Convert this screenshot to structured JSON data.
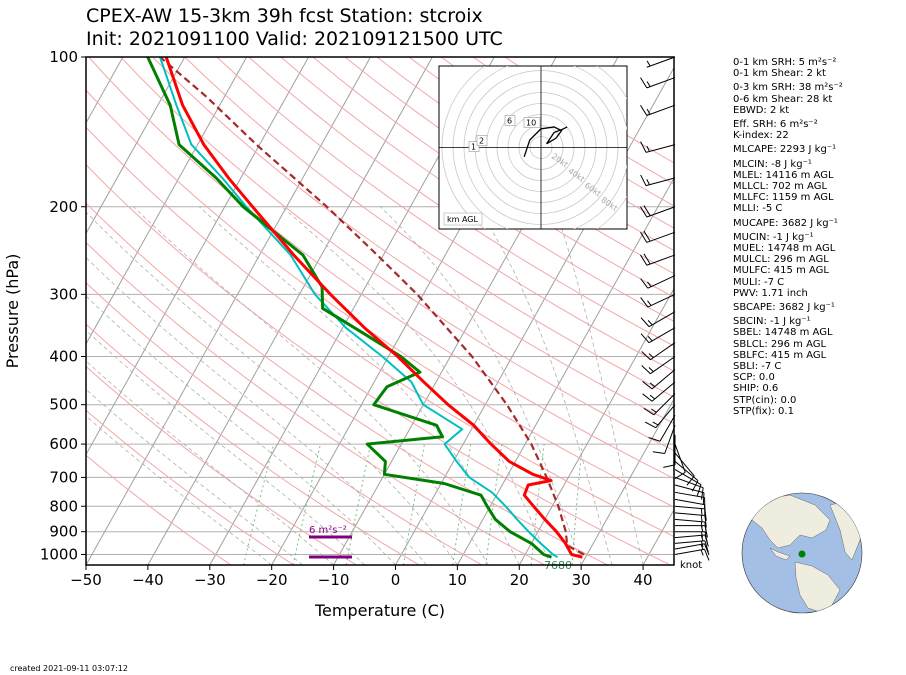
{
  "title_line1": "CPEX-AW 15-3km  39h fcst  Station: stcroix",
  "title_line2": "Init: 2021091100  Valid: 202109121500 UTC",
  "created": "created 2021-09-11 03:07:12",
  "wind_unit_label": "knot",
  "surface_label": "7680",
  "srh_label": "6 m²s⁻²",
  "hodograph": {
    "corner_label": "km AGL",
    "ring_labels": [
      "20kt",
      "40kt",
      "60kt",
      "80kt"
    ],
    "height_labels": [
      "1",
      "2",
      "6",
      "10"
    ]
  },
  "stats": [
    "0-1 km SRH: 5 m²s⁻²",
    "0-1 km Shear: 2 kt",
    "0-3 km SRH: 38 m²s⁻²",
    "0-6 km Shear: 28 kt",
    "EBWD: 2 kt",
    "Eff. SRH: 6 m²s⁻²",
    "K-index: 22",
    "MLCAPE: 2293 J kg⁻¹",
    "MLCIN: -8 J kg⁻¹",
    "MLEL: 14116 m AGL",
    "MLLCL: 702 m AGL",
    "MLLFC: 1159 m AGL",
    "MLLI: -5 C",
    "MUCAPE: 3682 J kg⁻¹",
    "MUCIN: -1 J kg⁻¹",
    "MUEL: 14748 m AGL",
    "MULCL: 296 m AGL",
    "MULFC: 415 m AGL",
    "MULI: -7 C",
    "PWV: 1.71 inch",
    "SBCAPE: 3682 J kg⁻¹",
    "SBCIN: -1 J kg⁻¹",
    "SBEL: 14748 m AGL",
    "SBLCL: 296 m AGL",
    "SBLFC: 415 m AGL",
    "SBLI: -7 C",
    "SCP: 0.0",
    "SHIP: 0.6",
    "STP(cin): 0.0",
    "STP(fix): 0.1"
  ],
  "colors": {
    "temperature": "#ff0000",
    "dewpoint": "#008000",
    "wetbulb": "#00bfbf",
    "parcel": "#a52a2a",
    "srh_bar": "#800080",
    "isotherm": "#a0a0a0",
    "dry_adiabat": "#f4a6a6",
    "moist_adiabat": "#b0b0b0",
    "mixing_ratio": "#7cbf7c",
    "globe_ocean": "#a3bfe6",
    "globe_land": "#efeddf"
  },
  "chart_data": {
    "type": "skew-t",
    "xlabel": "Temperature (C)",
    "ylabel": "Pressure (hPa)",
    "xlim": [
      -50,
      45
    ],
    "ylim": [
      1050,
      100
    ],
    "x_ticks": [
      -50,
      -40,
      -30,
      -20,
      -10,
      0,
      10,
      20,
      30,
      40
    ],
    "x_tick_labels": [
      "−50",
      "−40",
      "−30",
      "−20",
      "−10",
      "0",
      "10",
      "20",
      "30",
      "40"
    ],
    "y_ticks": [
      1000,
      900,
      800,
      700,
      600,
      500,
      400,
      300,
      200,
      100
    ],
    "y_tick_labels": [
      "1000",
      "900",
      "800",
      "700",
      "600",
      "500",
      "400",
      "300",
      "200",
      "100"
    ],
    "temperature": [
      {
        "p": 1013,
        "t": 29.5
      },
      {
        "p": 1000,
        "t": 27.5
      },
      {
        "p": 950,
        "t": 25.5
      },
      {
        "p": 900,
        "t": 23.0
      },
      {
        "p": 850,
        "t": 20.0
      },
      {
        "p": 800,
        "t": 17.0
      },
      {
        "p": 760,
        "t": 14.5
      },
      {
        "p": 725,
        "t": 14.2
      },
      {
        "p": 710,
        "t": 17.5
      },
      {
        "p": 690,
        "t": 14.0
      },
      {
        "p": 650,
        "t": 9.0
      },
      {
        "p": 600,
        "t": 4.5
      },
      {
        "p": 550,
        "t": 0.0
      },
      {
        "p": 500,
        "t": -6.0
      },
      {
        "p": 450,
        "t": -12.0
      },
      {
        "p": 400,
        "t": -18.5
      },
      {
        "p": 350,
        "t": -26.5
      },
      {
        "p": 300,
        "t": -35.0
      },
      {
        "p": 250,
        "t": -44.5
      },
      {
        "p": 200,
        "t": -55.5
      },
      {
        "p": 175,
        "t": -62.0
      },
      {
        "p": 150,
        "t": -69.0
      },
      {
        "p": 125,
        "t": -76.0
      },
      {
        "p": 100,
        "t": -83.0
      }
    ],
    "dewpoint": [
      {
        "p": 1013,
        "t": 24.5
      },
      {
        "p": 1000,
        "t": 23.0
      },
      {
        "p": 950,
        "t": 20.0
      },
      {
        "p": 900,
        "t": 15.5
      },
      {
        "p": 850,
        "t": 12.0
      },
      {
        "p": 800,
        "t": 9.5
      },
      {
        "p": 760,
        "t": 7.5
      },
      {
        "p": 720,
        "t": 0.5
      },
      {
        "p": 690,
        "t": -10.0
      },
      {
        "p": 650,
        "t": -11.0
      },
      {
        "p": 600,
        "t": -15.5
      },
      {
        "p": 580,
        "t": -4.0
      },
      {
        "p": 550,
        "t": -6.0
      },
      {
        "p": 500,
        "t": -18.0
      },
      {
        "p": 460,
        "t": -17.5
      },
      {
        "p": 430,
        "t": -13.5
      },
      {
        "p": 400,
        "t": -18.0
      },
      {
        "p": 360,
        "t": -26.0
      },
      {
        "p": 320,
        "t": -35.0
      },
      {
        "p": 290,
        "t": -37.0
      },
      {
        "p": 250,
        "t": -43.0
      },
      {
        "p": 200,
        "t": -57.0
      },
      {
        "p": 175,
        "t": -64.0
      },
      {
        "p": 150,
        "t": -73.0
      },
      {
        "p": 125,
        "t": -78.0
      },
      {
        "p": 100,
        "t": -86.0
      }
    ],
    "wetbulb": [
      {
        "p": 1013,
        "t": 25.5
      },
      {
        "p": 1000,
        "t": 24.5
      },
      {
        "p": 950,
        "t": 21.5
      },
      {
        "p": 900,
        "t": 18.5
      },
      {
        "p": 850,
        "t": 15.5
      },
      {
        "p": 800,
        "t": 12.5
      },
      {
        "p": 750,
        "t": 9.0
      },
      {
        "p": 700,
        "t": 4.0
      },
      {
        "p": 650,
        "t": 0.5
      },
      {
        "p": 600,
        "t": -3.0
      },
      {
        "p": 560,
        "t": -1.5
      },
      {
        "p": 500,
        "t": -10.0
      },
      {
        "p": 450,
        "t": -14.0
      },
      {
        "p": 400,
        "t": -21.0
      },
      {
        "p": 350,
        "t": -29.5
      },
      {
        "p": 300,
        "t": -37.5
      },
      {
        "p": 250,
        "t": -45.0
      },
      {
        "p": 200,
        "t": -56.5
      },
      {
        "p": 175,
        "t": -63.0
      },
      {
        "p": 150,
        "t": -71.0
      },
      {
        "p": 125,
        "t": -77.0
      },
      {
        "p": 100,
        "t": -84.0
      }
    ],
    "parcel": [
      {
        "p": 1000,
        "t": 29.5
      },
      {
        "p": 960,
        "t": 26.0
      },
      {
        "p": 900,
        "t": 24.5
      },
      {
        "p": 800,
        "t": 21.0
      },
      {
        "p": 700,
        "t": 16.5
      },
      {
        "p": 600,
        "t": 11.0
      },
      {
        "p": 500,
        "t": 3.5
      },
      {
        "p": 400,
        "t": -6.5
      },
      {
        "p": 300,
        "t": -21.0
      },
      {
        "p": 250,
        "t": -31.0
      },
      {
        "p": 200,
        "t": -43.5
      },
      {
        "p": 150,
        "t": -60.5
      },
      {
        "p": 120,
        "t": -73.0
      },
      {
        "p": 100,
        "t": -84.0
      }
    ],
    "wind_barbs": [
      {
        "p": 1000,
        "spd": 15,
        "dir": 80
      },
      {
        "p": 975,
        "spd": 15,
        "dir": 80
      },
      {
        "p": 950,
        "spd": 15,
        "dir": 85
      },
      {
        "p": 925,
        "spd": 15,
        "dir": 85
      },
      {
        "p": 900,
        "spd": 15,
        "dir": 90
      },
      {
        "p": 875,
        "spd": 15,
        "dir": 90
      },
      {
        "p": 850,
        "spd": 15,
        "dir": 95
      },
      {
        "p": 825,
        "spd": 15,
        "dir": 95
      },
      {
        "p": 800,
        "spd": 15,
        "dir": 95
      },
      {
        "p": 775,
        "spd": 10,
        "dir": 100
      },
      {
        "p": 750,
        "spd": 10,
        "dir": 100
      },
      {
        "p": 725,
        "spd": 10,
        "dir": 105
      },
      {
        "p": 700,
        "spd": 10,
        "dir": 110
      },
      {
        "p": 675,
        "spd": 10,
        "dir": 120
      },
      {
        "p": 650,
        "spd": 10,
        "dir": 130
      },
      {
        "p": 625,
        "spd": 10,
        "dir": 140
      },
      {
        "p": 600,
        "spd": 10,
        "dir": 160
      },
      {
        "p": 575,
        "spd": 10,
        "dir": 180
      },
      {
        "p": 550,
        "spd": 10,
        "dir": 200
      },
      {
        "p": 525,
        "spd": 10,
        "dir": 210
      },
      {
        "p": 500,
        "spd": 15,
        "dir": 220
      },
      {
        "p": 475,
        "spd": 15,
        "dir": 225
      },
      {
        "p": 450,
        "spd": 15,
        "dir": 230
      },
      {
        "p": 425,
        "spd": 15,
        "dir": 230
      },
      {
        "p": 400,
        "spd": 15,
        "dir": 235
      },
      {
        "p": 375,
        "spd": 15,
        "dir": 235
      },
      {
        "p": 350,
        "spd": 15,
        "dir": 240
      },
      {
        "p": 325,
        "spd": 15,
        "dir": 240
      },
      {
        "p": 300,
        "spd": 15,
        "dir": 245
      },
      {
        "p": 275,
        "spd": 15,
        "dir": 245
      },
      {
        "p": 250,
        "spd": 20,
        "dir": 250
      },
      {
        "p": 225,
        "spd": 20,
        "dir": 250
      },
      {
        "p": 200,
        "spd": 20,
        "dir": 250
      },
      {
        "p": 175,
        "spd": 15,
        "dir": 255
      },
      {
        "p": 150,
        "spd": 15,
        "dir": 255
      },
      {
        "p": 125,
        "spd": 15,
        "dir": 250
      },
      {
        "p": 110,
        "spd": 15,
        "dir": 250
      },
      {
        "p": 100,
        "spd": 5,
        "dir": 250
      }
    ],
    "hodograph_points": [
      {
        "u": -9,
        "v": -5
      },
      {
        "u": -6,
        "v": 4
      },
      {
        "u": 0,
        "v": 10
      },
      {
        "u": 7,
        "v": 11
      },
      {
        "u": 11,
        "v": 9
      },
      {
        "u": 8,
        "v": 5
      },
      {
        "u": 3,
        "v": 2
      },
      {
        "u": 7,
        "v": 8
      },
      {
        "u": 12,
        "v": 10
      },
      {
        "u": 14,
        "v": 11
      }
    ],
    "station_location": {
      "lat": 17.7,
      "lon": -64.7
    }
  }
}
